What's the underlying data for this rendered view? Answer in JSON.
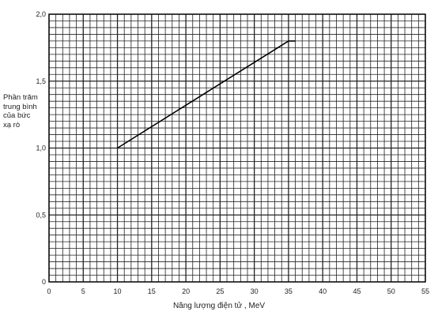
{
  "chart_data": {
    "type": "line",
    "ylabel_lines": [
      "Phần trăm",
      "trung bình",
      "của bức",
      "xạ rò"
    ],
    "xlabel": "Năng lượng điện tử ,   MeV",
    "xlim": [
      0,
      55
    ],
    "ylim": [
      0,
      2.0
    ],
    "x_ticks": [
      0,
      5,
      10,
      15,
      20,
      25,
      30,
      35,
      40,
      45,
      50,
      55
    ],
    "y_ticks": [
      {
        "value": 0,
        "label": "0"
      },
      {
        "value": 0.5,
        "label": "0,5"
      },
      {
        "value": 1.0,
        "label": "1,0"
      },
      {
        "value": 1.5,
        "label": "1,5"
      },
      {
        "value": 2.0,
        "label": "2,0"
      }
    ],
    "grid": true,
    "series": [
      {
        "x": [
          10,
          35,
          36
        ],
        "y": [
          1.0,
          1.8,
          1.8
        ]
      }
    ]
  }
}
